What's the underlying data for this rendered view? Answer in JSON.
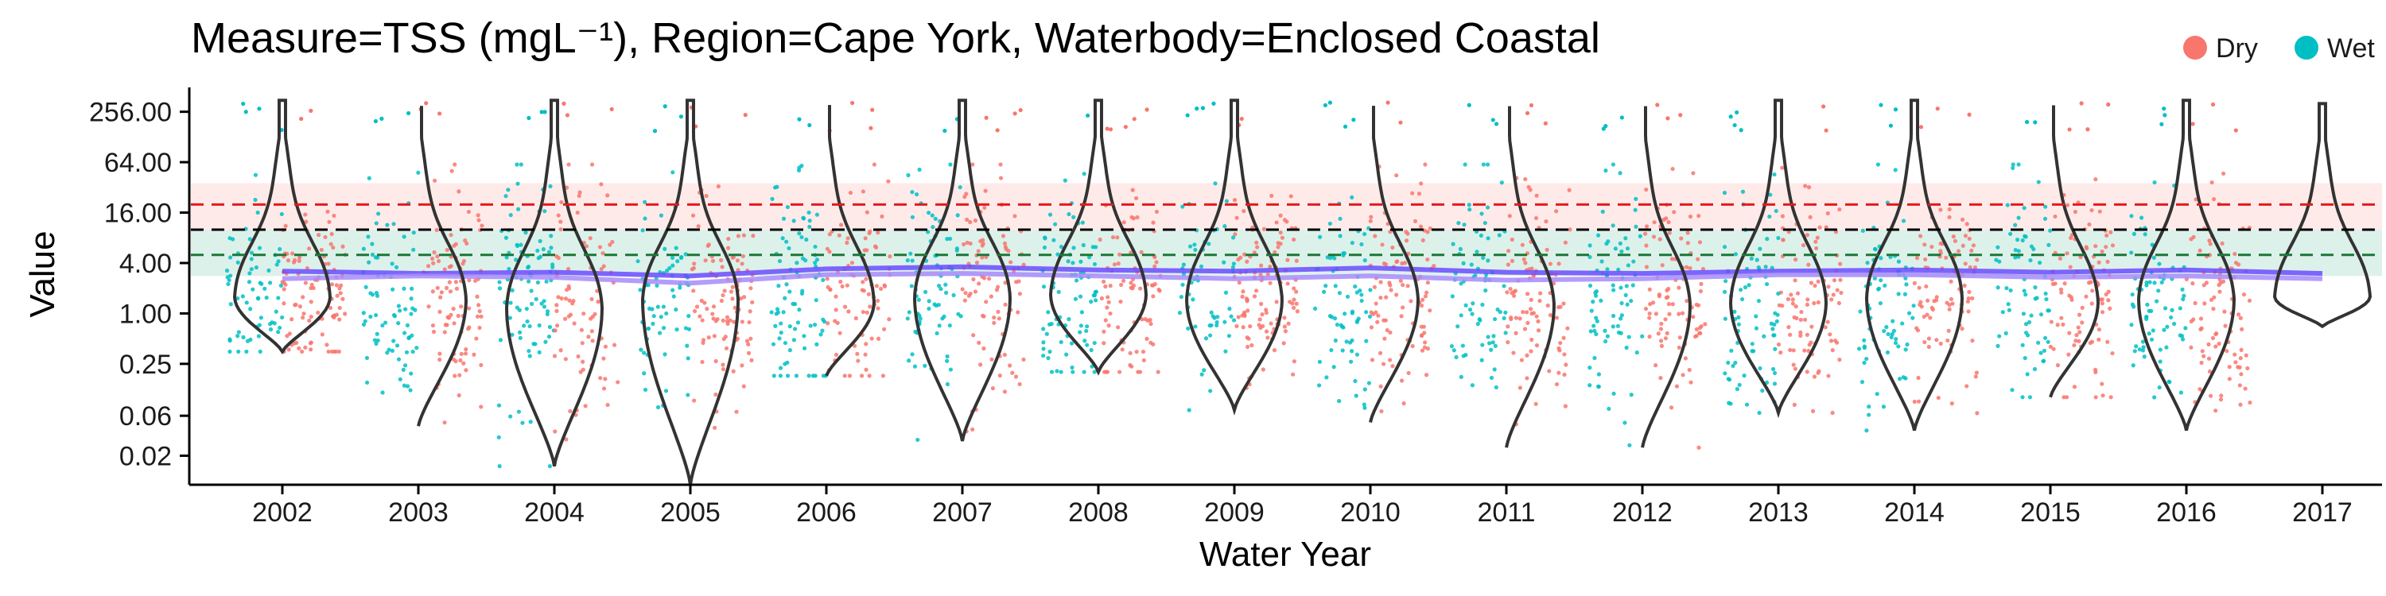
{
  "chart_data": {
    "type": "scatter",
    "title": "Measure=TSS (mgL⁻¹), Region=Cape York, Waterbody=Enclosed Coastal",
    "xlabel": "Water Year",
    "ylabel": "Value",
    "y_scale": "log",
    "ylim": [
      0.009,
      500
    ],
    "y_ticks": [
      0.02,
      0.06,
      0.25,
      1.0,
      4.0,
      16.0,
      64.0,
      256.0
    ],
    "y_tick_labels": [
      "0.02",
      "0.06",
      "0.25",
      "1.00",
      "4.00",
      "16.00",
      "64.00",
      "256.00"
    ],
    "categories": [
      "2002",
      "2003",
      "2004",
      "2005",
      "2006",
      "2007",
      "2008",
      "2009",
      "2010",
      "2011",
      "2012",
      "2013",
      "2014",
      "2015",
      "2016",
      "2017"
    ],
    "legend": {
      "placement": "top-right",
      "entries": [
        {
          "label": "Dry",
          "color": "#F8766D"
        },
        {
          "label": "Wet",
          "color": "#00BFC4"
        }
      ]
    },
    "reference_lines": [
      {
        "value": 20.0,
        "color": "#E41A1C",
        "style": "dashed"
      },
      {
        "value": 10.0,
        "color": "#000000",
        "style": "dashed"
      },
      {
        "value": 5.0,
        "color": "#1B7837",
        "style": "dashed"
      }
    ],
    "reference_bands": [
      {
        "from": 10.0,
        "to": 36.0,
        "color": "#F8766D"
      },
      {
        "from": 2.8,
        "to": 10.0,
        "color": "#1B9E77"
      }
    ],
    "violins": [
      {
        "year": "2002",
        "min": 0.35,
        "max": 350,
        "q25": 1.0,
        "median": 1.8,
        "q75": 4.0,
        "mode": 1.6
      },
      {
        "year": "2003",
        "min": 0.045,
        "max": 350,
        "q25": 0.8,
        "median": 1.8,
        "q75": 5.0,
        "mode": 1.5
      },
      {
        "year": "2004",
        "min": 0.015,
        "max": 350,
        "q25": 0.6,
        "median": 1.6,
        "q75": 5.0,
        "mode": 1.2
      },
      {
        "year": "2005",
        "min": 0.009,
        "max": 350,
        "q25": 0.7,
        "median": 1.5,
        "q75": 3.5,
        "mode": 1.5
      },
      {
        "year": "2006",
        "min": 0.18,
        "max": 350,
        "q25": 0.8,
        "median": 1.8,
        "q75": 5.0,
        "mode": 1.4
      },
      {
        "year": "2007",
        "min": 0.03,
        "max": 350,
        "q25": 0.9,
        "median": 2.0,
        "q75": 6.0,
        "mode": 1.6
      },
      {
        "year": "2008",
        "min": 0.2,
        "max": 350,
        "q25": 0.9,
        "median": 2.0,
        "q75": 5.0,
        "mode": 1.7
      },
      {
        "year": "2009",
        "min": 0.07,
        "max": 350,
        "q25": 0.8,
        "median": 1.8,
        "q75": 4.0,
        "mode": 1.5
      },
      {
        "year": "2010",
        "min": 0.05,
        "max": 350,
        "q25": 0.7,
        "median": 1.7,
        "q75": 4.0,
        "mode": 1.5
      },
      {
        "year": "2011",
        "min": 0.025,
        "max": 350,
        "q25": 0.6,
        "median": 1.5,
        "q75": 3.5,
        "mode": 1.3
      },
      {
        "year": "2012",
        "min": 0.025,
        "max": 350,
        "q25": 0.6,
        "median": 1.5,
        "q75": 3.5,
        "mode": 1.3
      },
      {
        "year": "2013",
        "min": 0.065,
        "max": 350,
        "q25": 0.7,
        "median": 1.6,
        "q75": 4.0,
        "mode": 1.4
      },
      {
        "year": "2014",
        "min": 0.04,
        "max": 350,
        "q25": 0.8,
        "median": 1.8,
        "q75": 4.5,
        "mode": 1.6
      },
      {
        "year": "2015",
        "min": 0.1,
        "max": 350,
        "q25": 0.7,
        "median": 1.6,
        "q75": 4.0,
        "mode": 1.4
      },
      {
        "year": "2016",
        "min": 0.04,
        "max": 350,
        "q25": 0.7,
        "median": 1.7,
        "q75": 4.0,
        "mode": 1.5
      },
      {
        "year": "2017",
        "min": 0.7,
        "max": 320,
        "q25": 0.9,
        "median": 1.6,
        "q75": 3.0,
        "mode": 1.6
      }
    ],
    "trend_lines": [
      {
        "name": "Dry",
        "color": "#6B4CFF",
        "values": [
          3.2,
          3.0,
          3.1,
          2.8,
          3.4,
          3.6,
          3.3,
          3.2,
          3.5,
          3.1,
          3.0,
          3.2,
          3.3,
          3.1,
          3.3,
          3.0
        ]
      },
      {
        "name": "Wet",
        "color": "#A78BFA",
        "values": [
          2.6,
          2.8,
          2.7,
          2.3,
          2.9,
          3.0,
          2.8,
          2.6,
          2.8,
          2.5,
          2.6,
          2.9,
          2.9,
          2.7,
          2.8,
          2.6
        ]
      }
    ]
  }
}
